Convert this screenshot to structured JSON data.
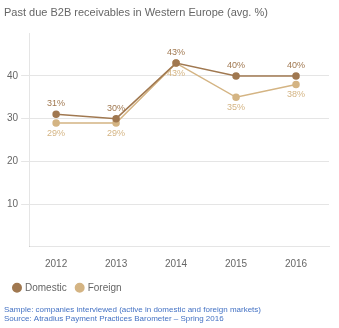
{
  "chart_data": {
    "type": "line",
    "title": "Past due B2B receivables in Western Europe (avg. %)",
    "x": [
      2012,
      2013,
      2014,
      2015,
      2016
    ],
    "series": [
      {
        "name": "Domestic",
        "color": "#a07850",
        "values": [
          31,
          30,
          43,
          40,
          40
        ],
        "value_labels": [
          "31%",
          "30%",
          "43%",
          "40%",
          "40%"
        ]
      },
      {
        "name": "Foreign",
        "color": "#d4b483",
        "values": [
          29,
          29,
          43,
          35,
          38
        ],
        "value_labels": [
          "29%",
          "29%",
          "43%",
          "35%",
          "38%"
        ]
      }
    ],
    "xlim": [
      2011.55,
      2016.55
    ],
    "xticks": [
      2012,
      2013,
      2014,
      2015,
      2016
    ],
    "ylim": [
      0,
      50
    ],
    "yticks": [
      10,
      20,
      30,
      40
    ],
    "grid": true,
    "legend": "bottom",
    "data_labels": true,
    "marker": "circle",
    "annotations": [
      "Sample: companies interviewed (active in domestic and foreign markets)",
      "Source: Atradius Payment Practices Barometer – Spring 2016"
    ]
  }
}
